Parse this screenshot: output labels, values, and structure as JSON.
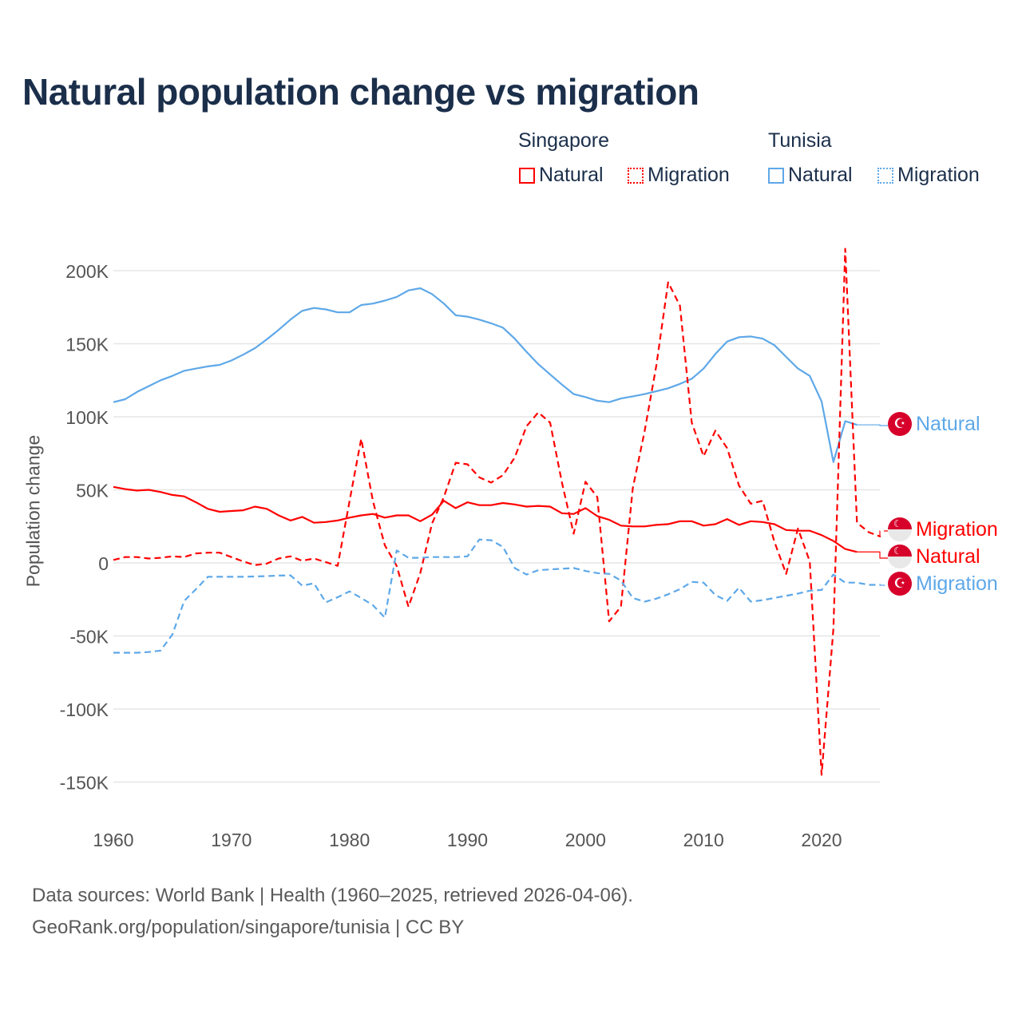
{
  "chart_data": {
    "type": "line",
    "title": "Natural population change vs migration",
    "xlabel": "",
    "ylabel": "Population change",
    "xlim": [
      1960,
      2025
    ],
    "ylim": [
      -150000,
      200000
    ],
    "grid": true,
    "legend_placement": "top-right",
    "x_ticks": [
      1960,
      1970,
      1980,
      1990,
      2000,
      2010,
      2020
    ],
    "x_tick_labels": [
      "1960",
      "1970",
      "1980",
      "1990",
      "2000",
      "2010",
      "2020"
    ],
    "y_ticks": [
      200000,
      150000,
      100000,
      50000,
      0,
      -50000,
      -100000,
      -150000
    ],
    "y_tick_labels": [
      "200K",
      "150K",
      "100K",
      "50K",
      "0",
      "-50K",
      "-100K",
      "-150K"
    ],
    "legend": {
      "groups": [
        {
          "name": "Singapore",
          "items": [
            "Natural",
            "Migration"
          ]
        },
        {
          "name": "Tunisia",
          "items": [
            "Natural",
            "Migration"
          ]
        }
      ]
    },
    "start_year": 1960,
    "series": [
      {
        "key": "tn_natural",
        "country": "Tunisia",
        "name": "Natural",
        "color": "#5ea8e8",
        "dash": "solid",
        "end_label": "Natural",
        "values": [
          110000,
          112000,
          117000,
          121000,
          125000,
          128000,
          131500,
          133000,
          134500,
          135500,
          138500,
          142500,
          147000,
          153000,
          159500,
          166500,
          172500,
          174500,
          173500,
          171500,
          171500,
          176500,
          177500,
          179500,
          182000,
          186500,
          188000,
          184000,
          177500,
          169500,
          168500,
          166500,
          164000,
          161000,
          153500,
          144500,
          136000,
          129000,
          122000,
          115500,
          113500,
          111000,
          110000,
          112500,
          114000,
          115500,
          117500,
          119500,
          122500,
          126000,
          133000,
          143000,
          151500,
          154500,
          155000,
          153500,
          149000,
          141000,
          133000,
          128000,
          110500,
          69000,
          97000,
          94500
        ]
      },
      {
        "key": "sg_migration",
        "country": "Singapore",
        "name": "Migration",
        "color": "#ff0000",
        "dash": "dashed",
        "end_label": "Migration",
        "values": [
          2000,
          4000,
          4000,
          3000,
          3500,
          4500,
          4000,
          6500,
          7000,
          7000,
          4000,
          1000,
          -1500,
          -500,
          3000,
          4500,
          1500,
          3000,
          500,
          -2000,
          42000,
          85000,
          42000,
          12000,
          -2000,
          -30000,
          -7000,
          27000,
          45000,
          68500,
          67500,
          58500,
          55000,
          60000,
          72000,
          93500,
          103000,
          96000,
          55000,
          20000,
          55500,
          45000,
          -40000,
          -30000,
          51000,
          90000,
          135000,
          192000,
          176000,
          96000,
          73000,
          90500,
          78500,
          53000,
          40500,
          42500,
          14500,
          -7500,
          23500,
          1000,
          -145000,
          -45000,
          215000,
          27500,
          21000,
          18000
        ]
      },
      {
        "key": "sg_natural",
        "country": "Singapore",
        "name": "Natural",
        "color": "#ff0000",
        "dash": "solid",
        "end_label": "Natural",
        "values": [
          52000,
          50500,
          49500,
          50000,
          48500,
          46500,
          45500,
          41500,
          37000,
          35000,
          35500,
          36000,
          38500,
          37000,
          32500,
          29000,
          31500,
          27500,
          28000,
          29000,
          31000,
          32500,
          33500,
          31000,
          32500,
          32500,
          28500,
          33000,
          42500,
          37500,
          41500,
          39500,
          39500,
          41000,
          40000,
          38500,
          39000,
          38500,
          34000,
          33500,
          37500,
          32000,
          29500,
          25500,
          25000,
          25000,
          26000,
          26500,
          28500,
          28500,
          25500,
          26500,
          30000,
          26000,
          28500,
          28000,
          26500,
          22500,
          22000,
          22000,
          19000,
          15000,
          9500,
          7500
        ]
      },
      {
        "key": "tn_migration",
        "country": "Tunisia",
        "name": "Migration",
        "color": "#5ea8e8",
        "dash": "dashed",
        "end_label": "Migration",
        "values": [
          -61500,
          -61500,
          -61500,
          -61000,
          -60000,
          -49000,
          -26000,
          -18000,
          -9500,
          -9500,
          -9500,
          -9500,
          -9300,
          -9000,
          -8700,
          -8500,
          -15500,
          -14000,
          -27000,
          -23500,
          -19500,
          -24000,
          -29000,
          -37500,
          8500,
          3500,
          3500,
          4000,
          4000,
          4000,
          4500,
          16000,
          15500,
          11000,
          -3500,
          -8000,
          -5000,
          -4500,
          -4000,
          -3500,
          -5500,
          -7000,
          -7500,
          -12000,
          -24000,
          -26500,
          -24500,
          -21500,
          -18000,
          -13000,
          -13500,
          -22000,
          -26000,
          -17000,
          -26500,
          -25500,
          -24000,
          -22500,
          -21000,
          -19000,
          -18500,
          -8000,
          -13500,
          -13500,
          -15000,
          -15000
        ]
      }
    ]
  },
  "source": {
    "line1": "Data sources: World Bank | Health (1960–2025, retrieved 2026-04-06).",
    "line2": "GeoRank.org/population/singapore/tunisia | CC BY"
  }
}
